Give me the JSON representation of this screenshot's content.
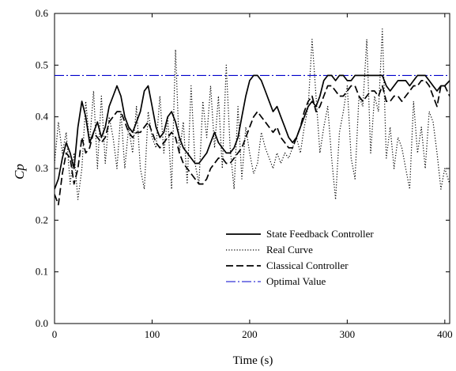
{
  "chart_data": {
    "type": "line",
    "title": "",
    "xlabel": "Time (s)",
    "ylabel": "Cp",
    "xlim": [
      0,
      405
    ],
    "ylim": [
      0.0,
      0.6
    ],
    "xticks": [
      0,
      100,
      200,
      300,
      400
    ],
    "yticks": [
      0.0,
      0.1,
      0.2,
      0.3,
      0.4,
      0.5,
      0.6
    ],
    "xtick_labels": [
      "0",
      "100",
      "200",
      "300",
      "400"
    ],
    "ytick_labels": [
      "0.0",
      "0.1",
      "0.2",
      "0.3",
      "0.4",
      "0.5",
      "0.6"
    ],
    "grid": false,
    "legend_position": "lower-center",
    "series": [
      {
        "name": "State Feedback Controller",
        "style": "solid",
        "color": "#000000",
        "x": [
          0,
          4,
          8,
          12,
          16,
          20,
          24,
          28,
          32,
          36,
          40,
          44,
          48,
          52,
          56,
          60,
          64,
          68,
          72,
          76,
          80,
          84,
          88,
          92,
          96,
          100,
          104,
          108,
          112,
          116,
          120,
          124,
          128,
          132,
          136,
          140,
          144,
          148,
          152,
          156,
          160,
          164,
          168,
          172,
          176,
          180,
          184,
          188,
          192,
          196,
          200,
          204,
          208,
          212,
          216,
          220,
          224,
          228,
          232,
          236,
          240,
          244,
          248,
          252,
          256,
          260,
          264,
          268,
          272,
          276,
          280,
          284,
          288,
          292,
          296,
          300,
          304,
          308,
          312,
          316,
          320,
          324,
          328,
          332,
          336,
          340,
          344,
          348,
          352,
          356,
          360,
          364,
          368,
          372,
          376,
          380,
          384,
          388,
          392,
          396,
          400,
          405
        ],
        "values": [
          0.26,
          0.28,
          0.32,
          0.35,
          0.33,
          0.3,
          0.38,
          0.43,
          0.4,
          0.35,
          0.37,
          0.39,
          0.36,
          0.38,
          0.42,
          0.44,
          0.46,
          0.44,
          0.4,
          0.38,
          0.37,
          0.39,
          0.41,
          0.45,
          0.46,
          0.42,
          0.38,
          0.36,
          0.37,
          0.4,
          0.41,
          0.39,
          0.36,
          0.34,
          0.33,
          0.32,
          0.31,
          0.31,
          0.32,
          0.33,
          0.35,
          0.37,
          0.35,
          0.34,
          0.33,
          0.33,
          0.34,
          0.36,
          0.4,
          0.44,
          0.47,
          0.48,
          0.48,
          0.47,
          0.45,
          0.43,
          0.41,
          0.42,
          0.4,
          0.38,
          0.36,
          0.35,
          0.36,
          0.38,
          0.4,
          0.42,
          0.43,
          0.42,
          0.44,
          0.47,
          0.48,
          0.48,
          0.47,
          0.48,
          0.48,
          0.47,
          0.47,
          0.48,
          0.48,
          0.48,
          0.48,
          0.48,
          0.48,
          0.48,
          0.48,
          0.46,
          0.45,
          0.46,
          0.47,
          0.47,
          0.47,
          0.46,
          0.47,
          0.48,
          0.48,
          0.48,
          0.47,
          0.46,
          0.45,
          0.46,
          0.46,
          0.47
        ]
      },
      {
        "name": "Real Curve",
        "style": "dotted",
        "color": "#000000",
        "x": [
          0,
          4,
          8,
          12,
          16,
          20,
          24,
          28,
          32,
          36,
          40,
          44,
          48,
          52,
          56,
          60,
          64,
          68,
          72,
          76,
          80,
          84,
          88,
          92,
          96,
          100,
          104,
          108,
          112,
          116,
          120,
          124,
          128,
          132,
          136,
          140,
          144,
          148,
          152,
          156,
          160,
          164,
          168,
          172,
          176,
          180,
          184,
          188,
          192,
          196,
          200,
          204,
          208,
          212,
          216,
          220,
          224,
          228,
          232,
          236,
          240,
          244,
          248,
          252,
          256,
          260,
          264,
          268,
          272,
          276,
          280,
          284,
          288,
          292,
          296,
          300,
          304,
          308,
          312,
          316,
          320,
          324,
          328,
          332,
          336,
          340,
          344,
          348,
          352,
          356,
          360,
          364,
          368,
          372,
          376,
          380,
          384,
          388,
          392,
          396,
          400,
          405
        ],
        "values": [
          0.31,
          0.39,
          0.33,
          0.37,
          0.27,
          0.33,
          0.24,
          0.3,
          0.43,
          0.35,
          0.45,
          0.3,
          0.44,
          0.31,
          0.4,
          0.36,
          0.3,
          0.41,
          0.3,
          0.38,
          0.33,
          0.42,
          0.3,
          0.26,
          0.41,
          0.36,
          0.34,
          0.44,
          0.33,
          0.4,
          0.26,
          0.53,
          0.33,
          0.39,
          0.27,
          0.46,
          0.31,
          0.27,
          0.43,
          0.36,
          0.46,
          0.34,
          0.44,
          0.3,
          0.5,
          0.34,
          0.26,
          0.42,
          0.28,
          0.38,
          0.33,
          0.29,
          0.31,
          0.37,
          0.34,
          0.32,
          0.3,
          0.33,
          0.31,
          0.33,
          0.32,
          0.34,
          0.36,
          0.33,
          0.38,
          0.42,
          0.55,
          0.44,
          0.33,
          0.38,
          0.42,
          0.32,
          0.24,
          0.37,
          0.41,
          0.46,
          0.32,
          0.28,
          0.44,
          0.42,
          0.55,
          0.33,
          0.44,
          0.41,
          0.57,
          0.32,
          0.38,
          0.3,
          0.36,
          0.34,
          0.3,
          0.26,
          0.43,
          0.33,
          0.38,
          0.3,
          0.41,
          0.39,
          0.33,
          0.26,
          0.3,
          0.27
        ]
      },
      {
        "name": "Classical Controller",
        "style": "dashed",
        "color": "#000000",
        "x": [
          0,
          4,
          8,
          12,
          16,
          20,
          24,
          28,
          32,
          36,
          40,
          44,
          48,
          52,
          56,
          60,
          64,
          68,
          72,
          76,
          80,
          84,
          88,
          92,
          96,
          100,
          104,
          108,
          112,
          116,
          120,
          124,
          128,
          132,
          136,
          140,
          144,
          148,
          152,
          156,
          160,
          164,
          168,
          172,
          176,
          180,
          184,
          188,
          192,
          196,
          200,
          204,
          208,
          212,
          216,
          220,
          224,
          228,
          232,
          236,
          240,
          244,
          248,
          252,
          256,
          260,
          264,
          268,
          272,
          276,
          280,
          284,
          288,
          292,
          296,
          300,
          304,
          308,
          312,
          316,
          320,
          324,
          328,
          332,
          336,
          340,
          344,
          348,
          352,
          356,
          360,
          364,
          368,
          372,
          376,
          380,
          384,
          388,
          392,
          396,
          400,
          405
        ],
        "values": [
          0.25,
          0.23,
          0.29,
          0.33,
          0.32,
          0.27,
          0.3,
          0.36,
          0.33,
          0.34,
          0.37,
          0.36,
          0.35,
          0.36,
          0.39,
          0.4,
          0.41,
          0.41,
          0.39,
          0.37,
          0.36,
          0.37,
          0.37,
          0.38,
          0.39,
          0.37,
          0.35,
          0.34,
          0.35,
          0.36,
          0.37,
          0.36,
          0.33,
          0.31,
          0.3,
          0.29,
          0.28,
          0.27,
          0.27,
          0.28,
          0.3,
          0.31,
          0.32,
          0.32,
          0.31,
          0.31,
          0.32,
          0.33,
          0.34,
          0.36,
          0.38,
          0.4,
          0.41,
          0.4,
          0.39,
          0.38,
          0.37,
          0.38,
          0.36,
          0.35,
          0.34,
          0.34,
          0.36,
          0.38,
          0.41,
          0.43,
          0.44,
          0.41,
          0.42,
          0.44,
          0.46,
          0.46,
          0.45,
          0.44,
          0.44,
          0.45,
          0.46,
          0.46,
          0.44,
          0.43,
          0.44,
          0.45,
          0.45,
          0.44,
          0.46,
          0.43,
          0.43,
          0.44,
          0.44,
          0.43,
          0.44,
          0.45,
          0.46,
          0.46,
          0.47,
          0.47,
          0.46,
          0.44,
          0.42,
          0.46,
          0.46,
          0.44
        ]
      },
      {
        "name": "Optimal Value",
        "style": "dashdot",
        "color": "#0000cc",
        "x": [
          0,
          405
        ],
        "values": [
          0.48,
          0.48
        ]
      }
    ]
  }
}
